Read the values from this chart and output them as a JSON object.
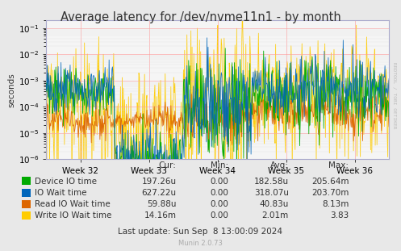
{
  "title": "Average latency for /dev/nvme11n1 - by month",
  "ylabel": "seconds",
  "bg_color": "#e8e8e8",
  "plot_bg_color": "#f5f5f5",
  "weeks": [
    "Week 32",
    "Week 33",
    "Week 34",
    "Week 35",
    "Week 36"
  ],
  "series": [
    {
      "name": "Device IO time",
      "color": "#00aa00"
    },
    {
      "name": "IO Wait time",
      "color": "#0066bb"
    },
    {
      "name": "Read IO Wait time",
      "color": "#dd6600"
    },
    {
      "name": "Write IO Wait time",
      "color": "#ffcc00"
    }
  ],
  "legend_table": {
    "headers": [
      "Cur:",
      "Min:",
      "Avg:",
      "Max:"
    ],
    "rows": [
      [
        "197.26u",
        "0.00",
        "182.58u",
        "205.64m"
      ],
      [
        "627.22u",
        "0.00",
        "318.07u",
        "203.70m"
      ],
      [
        "59.88u",
        "0.00",
        "40.83u",
        "8.13m"
      ],
      [
        "14.16m",
        "0.00",
        "2.01m",
        "3.83"
      ]
    ]
  },
  "last_update": "Last update: Sun Sep  8 13:00:09 2024",
  "munin_version": "Munin 2.0.73",
  "rrdtool_label": "RRDTOOL / TOBI OETIKER",
  "axis_font_size": 7.5,
  "title_font_size": 10.5,
  "legend_font_size": 7.5
}
